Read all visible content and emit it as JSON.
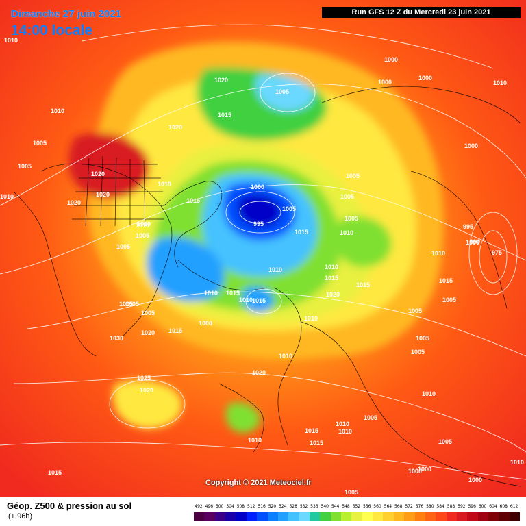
{
  "header": {
    "date_title": "Dimanche 27 juin 2021",
    "time_title": "14:00 locale",
    "run_info": "Run GFS 12 Z du Mercredi 23 juin 2021"
  },
  "footer": {
    "copyright": "Copyright © 2021 Meteociel.fr",
    "legend_title": "Géop. Z500 & pression au sol",
    "legend_subtitle": "(+ 96h)"
  },
  "scale": {
    "ticks": [
      "492",
      "496",
      "500",
      "504",
      "508",
      "512",
      "516",
      "520",
      "524",
      "528",
      "532",
      "536",
      "540",
      "544",
      "548",
      "552",
      "556",
      "560",
      "564",
      "568",
      "572",
      "576",
      "580",
      "584",
      "588",
      "592",
      "596",
      "600",
      "604",
      "608",
      "612"
    ],
    "colors": [
      "#4b0041",
      "#5a0060",
      "#3c0088",
      "#1a00a8",
      "#0000c8",
      "#0020ff",
      "#0050ff",
      "#0a7fff",
      "#22a0ff",
      "#44c2ff",
      "#6ad8ff",
      "#22c8a0",
      "#40d040",
      "#80e030",
      "#b8f030",
      "#e8f040",
      "#ffff50",
      "#ffe840",
      "#ffd030",
      "#ffb820",
      "#ff9c18",
      "#ff8010",
      "#ff6414",
      "#ff4818",
      "#f02a1e",
      "#d81a20",
      "#c00818",
      "#a00010",
      "#800008",
      "#600004",
      "#400000"
    ]
  },
  "pressure_labels": [
    "1010",
    "1020",
    "1005",
    "1000",
    "1020",
    "1010",
    "1000",
    "1000",
    "1010",
    "1010",
    "1015",
    "1020",
    "1000",
    "1005",
    "1005",
    "1020",
    "1020",
    "1010",
    "1000",
    "1005",
    "1010",
    "1015",
    "1010",
    "1005",
    "995",
    "1005",
    "1005",
    "1015",
    "1010",
    "1005",
    "995",
    "1000",
    "990",
    "975",
    "1010",
    "1015",
    "1005",
    "1010",
    "1015",
    "1010",
    "1015",
    "1010",
    "1005",
    "1010",
    "1005",
    "1005",
    "1015",
    "1020",
    "1000",
    "1015",
    "1005",
    "1030",
    "1020",
    "1005",
    "1015",
    "1005",
    "1010",
    "1010",
    "1010",
    "1025",
    "1020",
    "1020",
    "1010",
    "1015",
    "1010",
    "1015",
    "1005",
    "1005",
    "1010",
    "1000",
    "1000",
    "1005",
    "1015",
    "1005",
    "1010",
    "1000"
  ]
}
